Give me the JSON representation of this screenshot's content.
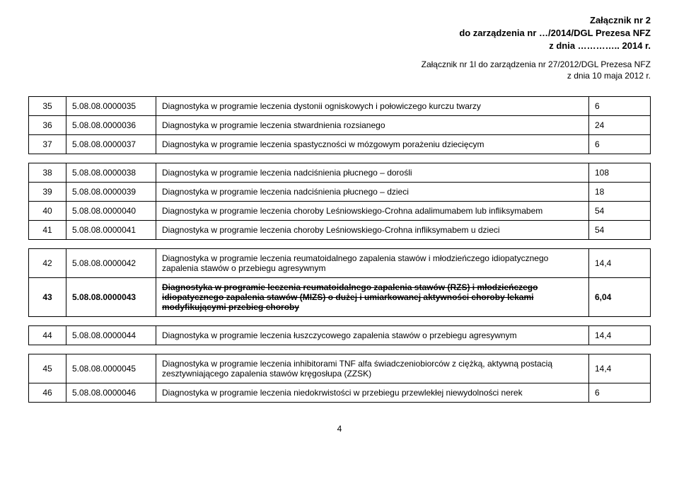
{
  "header": {
    "line1": "Załącznik nr 2",
    "line2": "do zarządzenia nr …/2014/DGL Prezesa NFZ",
    "line3": "z dnia ………….. 2014 r."
  },
  "subheader": {
    "line1": "Załącznik nr 1l do zarządzenia nr 27/2012/DGL Prezesa NFZ",
    "line2": "z dnia 10 maja 2012 r."
  },
  "rows": [
    {
      "no": "35",
      "code": "5.08.08.0000035",
      "desc": "Diagnostyka w programie leczenia dystonii ogniskowych i połowiczego kurczu twarzy",
      "val": "6"
    },
    {
      "no": "36",
      "code": "5.08.08.0000036",
      "desc": "Diagnostyka w programie leczenia stwardnienia rozsianego",
      "val": "24"
    },
    {
      "no": "37",
      "code": "5.08.08.0000037",
      "desc": "Diagnostyka w programie leczenia spastyczności w mózgowym porażeniu dziecięcym",
      "val": "6"
    },
    {
      "no": "38",
      "code": "5.08.08.0000038",
      "desc": "Diagnostyka w programie leczenia nadciśnienia płucnego – dorośli",
      "val": "108"
    },
    {
      "no": "39",
      "code": "5.08.08.0000039",
      "desc": "Diagnostyka w programie leczenia nadciśnienia płucnego – dzieci",
      "val": "18"
    },
    {
      "no": "40",
      "code": "5.08.08.0000040",
      "desc": "Diagnostyka w programie leczenia choroby Leśniowskiego-Crohna adalimumabem lub infliksymabem",
      "val": "54"
    },
    {
      "no": "41",
      "code": "5.08.08.0000041",
      "desc": "Diagnostyka w programie leczenia choroby Leśniowskiego-Crohna infliksymabem u dzieci",
      "val": "54"
    },
    {
      "no": "42",
      "code": "5.08.08.0000042",
      "desc": "Diagnostyka w programie leczenia reumatoidalnego zapalenia stawów i młodzieńczego idiopatycznego zapalenia stawów o przebiegu agresywnym",
      "val": "14,4"
    },
    {
      "no": "43",
      "code": "5.08.08.0000043",
      "desc": "Diagnostyka w programie  leczenia reumatoidalnego zapalenia stawów (RZS) i młodzieńczego idiopatycznego zapalenia stawów (MIZS) o dużej i umiarkowanej aktywności choroby lekami modyfikującymi przebieg choroby",
      "val": "6,04"
    },
    {
      "no": "44",
      "code": "5.08.08.0000044",
      "desc": "Diagnostyka w programie leczenia  łuszczycowego zapalenia stawów o przebiegu agresywnym",
      "val": "14,4"
    },
    {
      "no": "45",
      "code": "5.08.08.0000045",
      "desc": "Diagnostyka w programie  leczenia  inhibitorami TNF alfa świadczeniobiorców z ciężką, aktywną postacią zesztywniającego zapalenia stawów kręgosłupa (ZZSK)",
      "val": "14,4"
    },
    {
      "no": "46",
      "code": "5.08.08.0000046",
      "desc": "Diagnostyka w programie leczenia niedokrwistości w przebiegu przewlekłej niewydolności nerek",
      "val": "6"
    }
  ],
  "pageNumber": "4"
}
